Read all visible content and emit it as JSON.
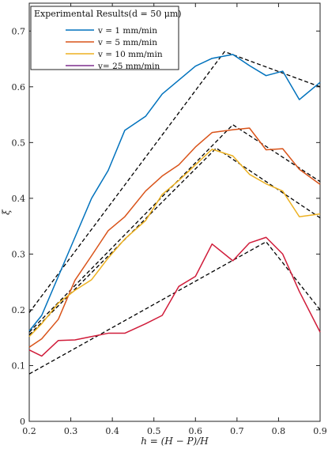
{
  "chart_data": {
    "type": "line",
    "title": "",
    "xlabel": "h = (H − P)/H",
    "ylabel": "ξ",
    "xlim": [
      0.2,
      0.9
    ],
    "ylim": [
      0,
      0.75
    ],
    "xticks": [
      "0.2",
      "0.3",
      "0.4",
      "0.5",
      "0.6",
      "0.7",
      "0.8",
      "0.9"
    ],
    "yticks": [
      "0",
      "0.1",
      "0.2",
      "0.3",
      "0.4",
      "0.5",
      "0.6",
      "0.7"
    ],
    "grid": false,
    "legend": {
      "placement": "top-left",
      "title": "Experimental Results(d = 50 μm)",
      "entries": [
        "v = 1 mm/min",
        "v = 5 mm/min",
        "v = 10 mm/min",
        "v= 25 mm/min"
      ]
    },
    "series": [
      {
        "name": "v = 1 mm/min",
        "color": "#0072bd",
        "x": [
          0.2,
          0.23,
          0.27,
          0.31,
          0.35,
          0.39,
          0.43,
          0.48,
          0.52,
          0.56,
          0.6,
          0.64,
          0.69,
          0.73,
          0.77,
          0.81,
          0.85,
          0.9
        ],
        "y": [
          0.162,
          0.19,
          0.26,
          0.33,
          0.4,
          0.45,
          0.522,
          0.547,
          0.587,
          0.612,
          0.637,
          0.651,
          0.658,
          0.638,
          0.62,
          0.628,
          0.577,
          0.608
        ]
      },
      {
        "name": "v = 5 mm/min",
        "color": "#d95319",
        "x": [
          0.2,
          0.23,
          0.27,
          0.31,
          0.35,
          0.39,
          0.43,
          0.48,
          0.52,
          0.56,
          0.6,
          0.64,
          0.69,
          0.73,
          0.77,
          0.81,
          0.85,
          0.9
        ],
        "y": [
          0.133,
          0.148,
          0.183,
          0.253,
          0.297,
          0.342,
          0.367,
          0.413,
          0.44,
          0.46,
          0.492,
          0.518,
          0.523,
          0.526,
          0.487,
          0.489,
          0.452,
          0.425
        ]
      },
      {
        "name": "v = 10 mm/min",
        "color": "#edb120",
        "x": [
          0.2,
          0.23,
          0.27,
          0.31,
          0.35,
          0.39,
          0.43,
          0.48,
          0.52,
          0.56,
          0.6,
          0.64,
          0.69,
          0.73,
          0.77,
          0.81,
          0.85,
          0.9
        ],
        "y": [
          0.152,
          0.175,
          0.212,
          0.235,
          0.254,
          0.293,
          0.327,
          0.36,
          0.407,
          0.432,
          0.46,
          0.488,
          0.476,
          0.443,
          0.426,
          0.413,
          0.367,
          0.372
        ]
      },
      {
        "name": "v= 25 mm/min",
        "color": "#7e2f8e",
        "x": [],
        "y": []
      },
      {
        "name": "",
        "color": "#d01c3a",
        "x": [
          0.2,
          0.23,
          0.27,
          0.31,
          0.35,
          0.39,
          0.43,
          0.48,
          0.52,
          0.56,
          0.6,
          0.64,
          0.69,
          0.73,
          0.77,
          0.81,
          0.85,
          0.9
        ],
        "y": [
          0.128,
          0.117,
          0.145,
          0.146,
          0.152,
          0.158,
          0.158,
          0.175,
          0.19,
          0.242,
          0.26,
          0.318,
          0.288,
          0.32,
          0.33,
          0.3,
          0.233,
          0.16
        ]
      }
    ],
    "fits": [
      {
        "color": "#000000",
        "x": [
          0.2,
          0.67,
          0.9
        ],
        "y": [
          0.195,
          0.663,
          0.6
        ]
      },
      {
        "color": "#000000",
        "x": [
          0.2,
          0.69,
          0.9
        ],
        "y": [
          0.16,
          0.532,
          0.43
        ]
      },
      {
        "color": "#000000",
        "x": [
          0.2,
          0.65,
          0.9
        ],
        "y": [
          0.155,
          0.49,
          0.365
        ]
      },
      {
        "color": "#000000",
        "x": [
          0.2,
          0.77,
          0.9
        ],
        "y": [
          0.085,
          0.322,
          0.2
        ]
      }
    ]
  }
}
